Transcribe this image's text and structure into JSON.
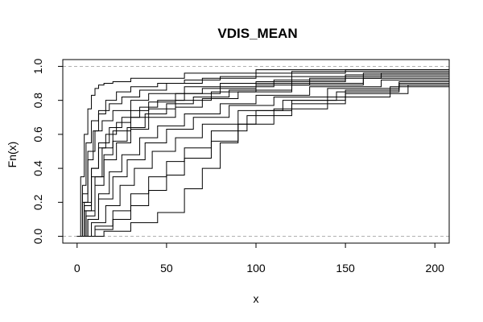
{
  "chart_data": {
    "type": "line",
    "step": true,
    "title": "VDIS_MEAN",
    "xlabel": "x",
    "ylabel": "Fn(x)",
    "xlim": [
      -8,
      208
    ],
    "ylim": [
      -0.04,
      1.04
    ],
    "x_ticks": [
      0,
      50,
      100,
      150,
      200
    ],
    "x_tick_labels": [
      "0",
      "50",
      "100",
      "150",
      "200"
    ],
    "y_ticks": [
      0.0,
      0.2,
      0.4,
      0.6,
      0.8,
      1.0
    ],
    "y_tick_labels": [
      "0.0",
      "0.2",
      "0.4",
      "0.6",
      "0.8",
      "1.0"
    ],
    "reference_lines": [
      0,
      1
    ],
    "line_color": "#000000",
    "reference_color": "#b0b0b0",
    "grid": false,
    "series": [
      {
        "x": [
          0,
          2,
          4,
          6,
          8,
          10,
          12,
          15,
          20,
          30,
          60,
          100,
          208
        ],
        "y": [
          0,
          0.35,
          0.6,
          0.75,
          0.83,
          0.87,
          0.89,
          0.9,
          0.91,
          0.93,
          0.96,
          0.98,
          0.99
        ]
      },
      {
        "x": [
          0,
          3,
          6,
          9,
          12,
          16,
          22,
          30,
          45,
          60,
          80,
          120,
          208
        ],
        "y": [
          0,
          0.2,
          0.45,
          0.62,
          0.72,
          0.8,
          0.85,
          0.88,
          0.9,
          0.92,
          0.94,
          0.97,
          0.99
        ]
      },
      {
        "x": [
          0,
          3,
          6,
          10,
          14,
          20,
          30,
          40,
          60,
          80,
          120,
          160,
          208
        ],
        "y": [
          0,
          0.25,
          0.5,
          0.62,
          0.68,
          0.74,
          0.8,
          0.84,
          0.88,
          0.9,
          0.94,
          0.96,
          0.98
        ]
      },
      {
        "x": [
          0,
          4,
          8,
          12,
          16,
          22,
          30,
          40,
          55,
          70,
          100,
          150,
          208
        ],
        "y": [
          0,
          0.2,
          0.4,
          0.52,
          0.6,
          0.67,
          0.74,
          0.79,
          0.84,
          0.87,
          0.91,
          0.95,
          0.97
        ]
      },
      {
        "x": [
          0,
          4,
          8,
          12,
          18,
          25,
          35,
          45,
          60,
          80,
          110,
          150,
          208
        ],
        "y": [
          0,
          0.18,
          0.4,
          0.55,
          0.64,
          0.7,
          0.76,
          0.8,
          0.84,
          0.88,
          0.92,
          0.95,
          0.98
        ]
      },
      {
        "x": [
          0,
          5,
          10,
          15,
          20,
          28,
          38,
          50,
          65,
          85,
          120,
          160,
          208
        ],
        "y": [
          0,
          0.15,
          0.35,
          0.48,
          0.56,
          0.64,
          0.72,
          0.78,
          0.82,
          0.86,
          0.9,
          0.94,
          0.96
        ]
      },
      {
        "x": [
          0,
          5,
          10,
          15,
          22,
          30,
          40,
          55,
          70,
          90,
          120,
          160,
          208
        ],
        "y": [
          0,
          0.12,
          0.3,
          0.45,
          0.55,
          0.63,
          0.7,
          0.76,
          0.81,
          0.85,
          0.89,
          0.93,
          0.95
        ]
      },
      {
        "x": [
          0,
          6,
          12,
          18,
          25,
          35,
          45,
          60,
          80,
          100,
          130,
          170,
          208
        ],
        "y": [
          0,
          0.1,
          0.25,
          0.38,
          0.48,
          0.58,
          0.65,
          0.72,
          0.78,
          0.83,
          0.88,
          0.92,
          0.94
        ]
      },
      {
        "x": [
          0,
          6,
          12,
          20,
          28,
          38,
          50,
          65,
          85,
          110,
          140,
          180,
          208
        ],
        "y": [
          0,
          0.1,
          0.22,
          0.35,
          0.45,
          0.55,
          0.63,
          0.7,
          0.77,
          0.82,
          0.87,
          0.91,
          0.93
        ]
      },
      {
        "x": [
          0,
          8,
          16,
          24,
          32,
          42,
          55,
          70,
          90,
          115,
          145,
          180,
          208
        ],
        "y": [
          0,
          0.08,
          0.18,
          0.3,
          0.4,
          0.5,
          0.58,
          0.66,
          0.74,
          0.8,
          0.85,
          0.89,
          0.92
        ]
      },
      {
        "x": [
          0,
          10,
          20,
          30,
          40,
          50,
          60,
          75,
          95,
          120,
          150,
          185,
          208
        ],
        "y": [
          0,
          0.06,
          0.15,
          0.25,
          0.35,
          0.44,
          0.52,
          0.62,
          0.71,
          0.78,
          0.84,
          0.89,
          0.91
        ]
      },
      {
        "x": [
          0,
          10,
          20,
          30,
          40,
          50,
          60,
          75,
          90,
          110,
          140,
          175,
          208
        ],
        "y": [
          0,
          0.04,
          0.1,
          0.18,
          0.27,
          0.36,
          0.46,
          0.56,
          0.66,
          0.75,
          0.82,
          0.88,
          0.92
        ]
      },
      {
        "x": [
          0,
          15,
          30,
          45,
          60,
          70,
          80,
          90,
          100,
          120,
          150,
          180,
          208
        ],
        "y": [
          0,
          0.03,
          0.08,
          0.14,
          0.28,
          0.4,
          0.55,
          0.66,
          0.74,
          0.8,
          0.86,
          0.9,
          0.93
        ]
      },
      {
        "x": [
          0,
          3,
          5,
          8,
          12,
          18,
          25,
          35,
          50,
          70,
          100,
          150,
          208
        ],
        "y": [
          0,
          0.3,
          0.55,
          0.68,
          0.74,
          0.78,
          0.82,
          0.86,
          0.9,
          0.93,
          0.96,
          0.98,
          0.99
        ]
      },
      {
        "x": [
          0,
          4,
          8,
          14,
          20,
          30,
          40,
          55,
          75,
          100,
          130,
          170,
          208
        ],
        "y": [
          0,
          0.15,
          0.35,
          0.52,
          0.62,
          0.7,
          0.75,
          0.8,
          0.85,
          0.89,
          0.93,
          0.96,
          0.97
        ]
      }
    ]
  }
}
